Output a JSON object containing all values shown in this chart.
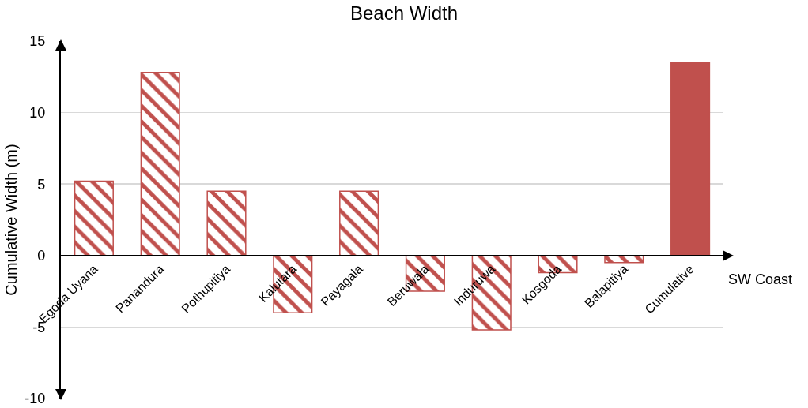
{
  "chart_data": {
    "type": "bar",
    "title": "Beach Width",
    "xlabel": "SW Coast",
    "ylabel": "Cumulative Width (m)",
    "categories": [
      "Egoda Uyana",
      "Panandura",
      "Pothupitiya",
      "Kalutara",
      "Payagala",
      "Beruwala",
      "Induruwa",
      "Kosgoda",
      "Balapitiya",
      "Cumulative"
    ],
    "series": [
      {
        "color": "#c0504d",
        "values": [
          5.2,
          12.8,
          4.5,
          -4.0,
          4.5,
          -2.5,
          -5.2,
          -1.2,
          -0.5,
          null
        ]
      },
      {
        "color": "#c0504d",
        "values": [
          null,
          null,
          null,
          null,
          null,
          null,
          null,
          null,
          null,
          13.5
        ]
      }
    ],
    "ylim": [
      -10,
      15
    ],
    "yticks": [
      -10,
      -5,
      0,
      5,
      10,
      15
    ],
    "grid": "y"
  }
}
